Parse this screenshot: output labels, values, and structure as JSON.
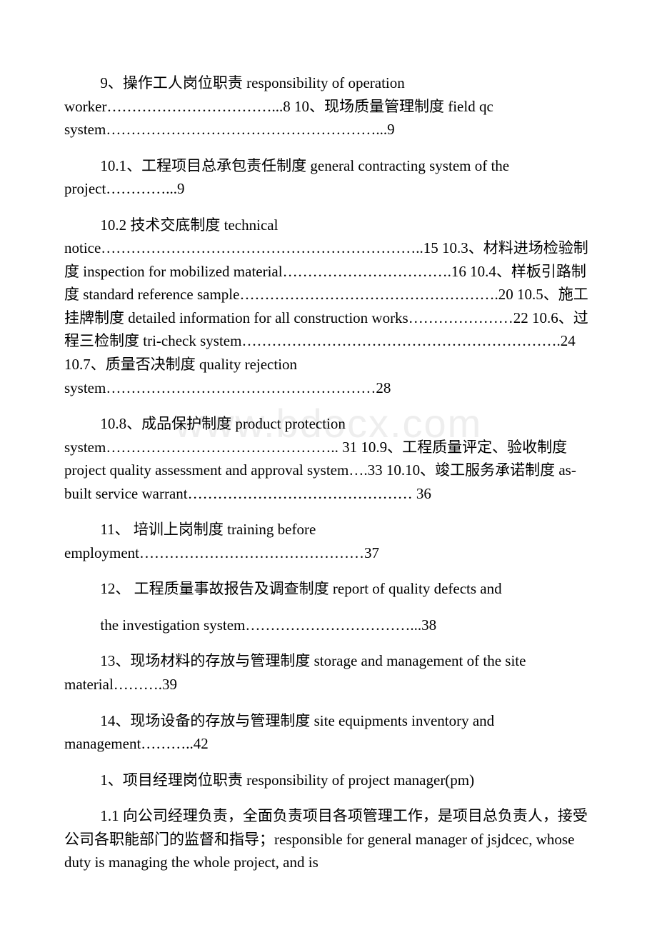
{
  "watermark": "www.bdocx.com",
  "toc": {
    "item9": "9、操作工人岗位职责 responsibility of operation worker……………………………...8 10、现场质量管理制度 field qc system………………………………………………...9",
    "item10_1": "10.1、工程项目总承包责任制度 general contracting system of the project…………...9",
    "item10_2": "10.2 技术交底制度 technical notice………………………………………………………..15 10.3、材料进场检验制度 inspection for mobilized material…………………………….16 10.4、样板引路制度 standard reference sample…………………………………………….20 10.5、施工挂牌制度 detailed information for all construction works…………………22 10.6、过程三检制度 tri-check system……………………………………………………….24 10.7、质量否决制度 quality rejection system………………………………………………28",
    "item10_8": "10.8、成品保护制度 product protection system……………………………………….. 31 10.9、工程质量评定、验收制度 project quality assessment and approval system….33 10.10、竣工服务承诺制度 as-built service warrant……………………………………… 36",
    "item11": "11、 培训上岗制度 training before employment………………………………………37",
    "item12a": "12、 工程质量事故报告及调查制度 report of quality defects and",
    "item12b": "the investigation system……………………………...38",
    "item13": "13、现场材料的存放与管理制度 storage and management of the site material……….39",
    "item14": "14、现场设备的存放与管理制度 site equipments inventory and management………..42"
  },
  "section1": {
    "title": "1、项目经理岗位职责 responsibility of project manager(pm)",
    "para1_1": "1.1 向公司经理负责，全面负责项目各项管理工作，是项目总负责人，接受公司各职能部门的监督和指导；responsible for general manager of jsjdcec, whose duty is managing the whole project, and is"
  }
}
